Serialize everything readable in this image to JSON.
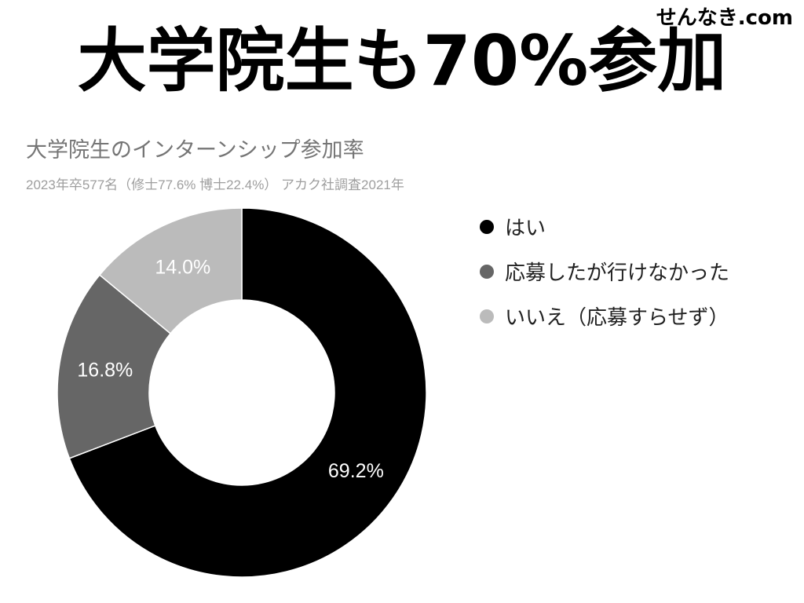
{
  "site_name": "せんなき.com",
  "headline": "大学院生も70%参加",
  "chart_data": {
    "type": "pie",
    "donut": true,
    "title": "大学院生のインターンシップ参加率",
    "subtitle": "2023年卒577名（修士77.6% 博士22.4%） アカク社調査2021年",
    "categories": [
      "はい",
      "応募したが行けなかった",
      "いいえ（応募すらせず）"
    ],
    "values": [
      69.2,
      16.8,
      14.0
    ],
    "data_labels": [
      "69.2%",
      "16.8%",
      "14.0%"
    ],
    "colors": [
      "#000000",
      "#666666",
      "#bbbbbb"
    ],
    "legend_position": "right"
  }
}
